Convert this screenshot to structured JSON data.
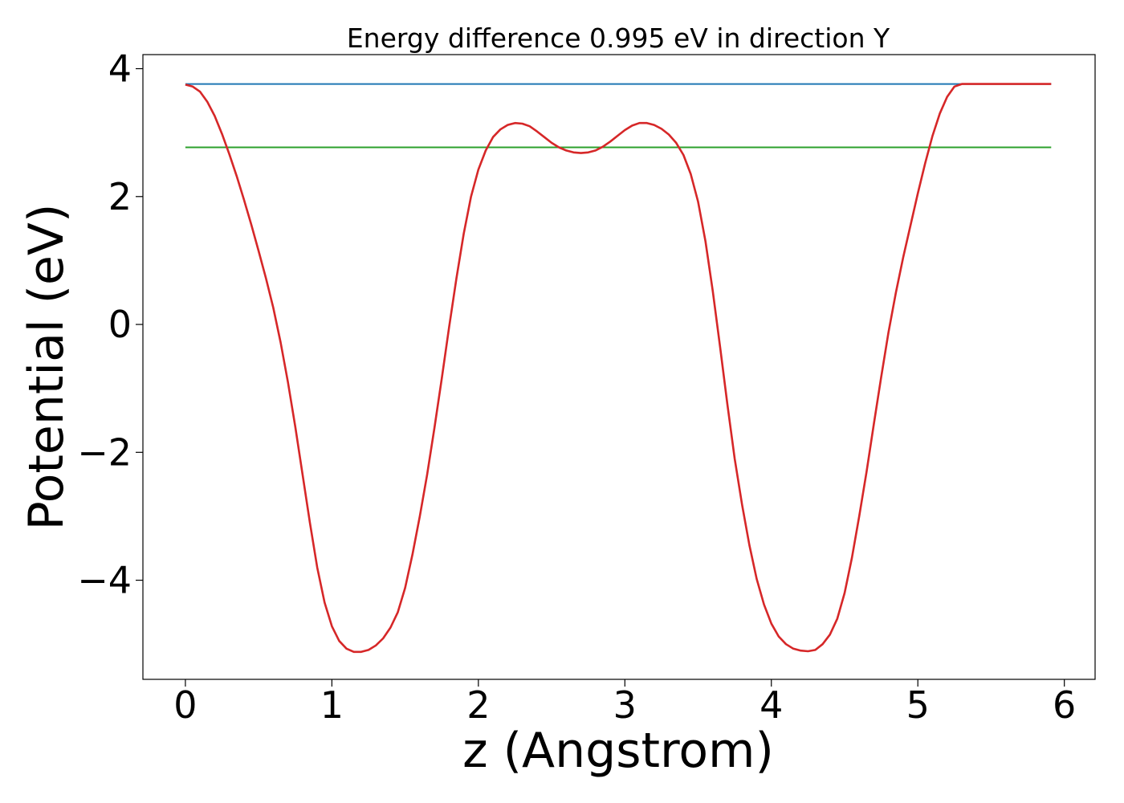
{
  "chart_data": {
    "type": "line",
    "title": "Energy difference 0.995 eV in direction Y",
    "xlabel": "z (Angstrom)",
    "ylabel": "Potential (eV)",
    "xlim": [
      -0.29,
      6.21
    ],
    "ylim": [
      -5.55,
      4.22
    ],
    "xticks": [
      0,
      1,
      2,
      3,
      4,
      5,
      6
    ],
    "xtick_labels": [
      "0",
      "1",
      "2",
      "3",
      "4",
      "5",
      "6"
    ],
    "yticks": [
      4,
      2,
      0,
      -2,
      -4
    ],
    "ytick_labels": [
      "4",
      "2",
      "0",
      "−2",
      "−4"
    ],
    "grid": false,
    "series": [
      {
        "color": "#1f77b4",
        "x": [
          0,
          5.91
        ],
        "y": [
          3.76,
          3.76
        ]
      },
      {
        "color": "#2ca02c",
        "x": [
          0,
          5.91
        ],
        "y": [
          2.77,
          2.77
        ]
      },
      {
        "color": "#d62728",
        "x": [
          0,
          0.05,
          0.1,
          0.15,
          0.2,
          0.25,
          0.3,
          0.35,
          0.4,
          0.45,
          0.5,
          0.55,
          0.6,
          0.65,
          0.7,
          0.75,
          0.8,
          0.85,
          0.9,
          0.95,
          1.0,
          1.05,
          1.1,
          1.15,
          1.2,
          1.25,
          1.3,
          1.35,
          1.4,
          1.45,
          1.5,
          1.55,
          1.6,
          1.65,
          1.7,
          1.75,
          1.8,
          1.85,
          1.9,
          1.95,
          2.0,
          2.05,
          2.1,
          2.15,
          2.2,
          2.25,
          2.3,
          2.35,
          2.4,
          2.45,
          2.5,
          2.55,
          2.6,
          2.65,
          2.7,
          2.75,
          2.8,
          2.85,
          2.9,
          2.95,
          3.0,
          3.05,
          3.1,
          3.15,
          3.2,
          3.25,
          3.3,
          3.35,
          3.4,
          3.45,
          3.5,
          3.55,
          3.6,
          3.65,
          3.7,
          3.75,
          3.8,
          3.85,
          3.9,
          3.95,
          4.0,
          4.05,
          4.1,
          4.15,
          4.2,
          4.25,
          4.3,
          4.35,
          4.4,
          4.45,
          4.5,
          4.55,
          4.6,
          4.65,
          4.7,
          4.75,
          4.8,
          4.85,
          4.9,
          4.95,
          5.0,
          5.05,
          5.1,
          5.15,
          5.2,
          5.25,
          5.3,
          5.35,
          5.4,
          5.45,
          5.5,
          5.55,
          5.6,
          5.65,
          5.7,
          5.75,
          5.8,
          5.85,
          5.91
        ],
        "y": [
          3.75,
          3.72,
          3.64,
          3.48,
          3.26,
          2.98,
          2.66,
          2.32,
          1.95,
          1.56,
          1.15,
          0.72,
          0.26,
          -0.28,
          -0.9,
          -1.6,
          -2.35,
          -3.1,
          -3.8,
          -4.35,
          -4.72,
          -4.95,
          -5.07,
          -5.12,
          -5.12,
          -5.09,
          -5.02,
          -4.91,
          -4.74,
          -4.5,
          -4.12,
          -3.6,
          -3.0,
          -2.35,
          -1.62,
          -0.85,
          -0.05,
          0.72,
          1.42,
          2.0,
          2.42,
          2.72,
          2.93,
          3.05,
          3.12,
          3.15,
          3.14,
          3.1,
          3.02,
          2.93,
          2.84,
          2.77,
          2.72,
          2.69,
          2.68,
          2.69,
          2.72,
          2.78,
          2.86,
          2.95,
          3.04,
          3.11,
          3.15,
          3.15,
          3.12,
          3.06,
          2.97,
          2.84,
          2.65,
          2.35,
          1.92,
          1.3,
          0.52,
          -0.35,
          -1.25,
          -2.1,
          -2.82,
          -3.45,
          -3.98,
          -4.38,
          -4.68,
          -4.88,
          -5.0,
          -5.07,
          -5.1,
          -5.11,
          -5.09,
          -5.0,
          -4.85,
          -4.6,
          -4.2,
          -3.65,
          -3.0,
          -2.3,
          -1.55,
          -0.82,
          -0.12,
          0.5,
          1.05,
          1.55,
          2.05,
          2.52,
          2.95,
          3.3,
          3.56,
          3.72,
          3.76,
          3.76,
          3.76,
          3.76,
          3.76,
          3.76,
          3.76,
          3.76,
          3.76,
          3.76,
          3.76,
          3.76,
          3.76
        ]
      }
    ]
  }
}
